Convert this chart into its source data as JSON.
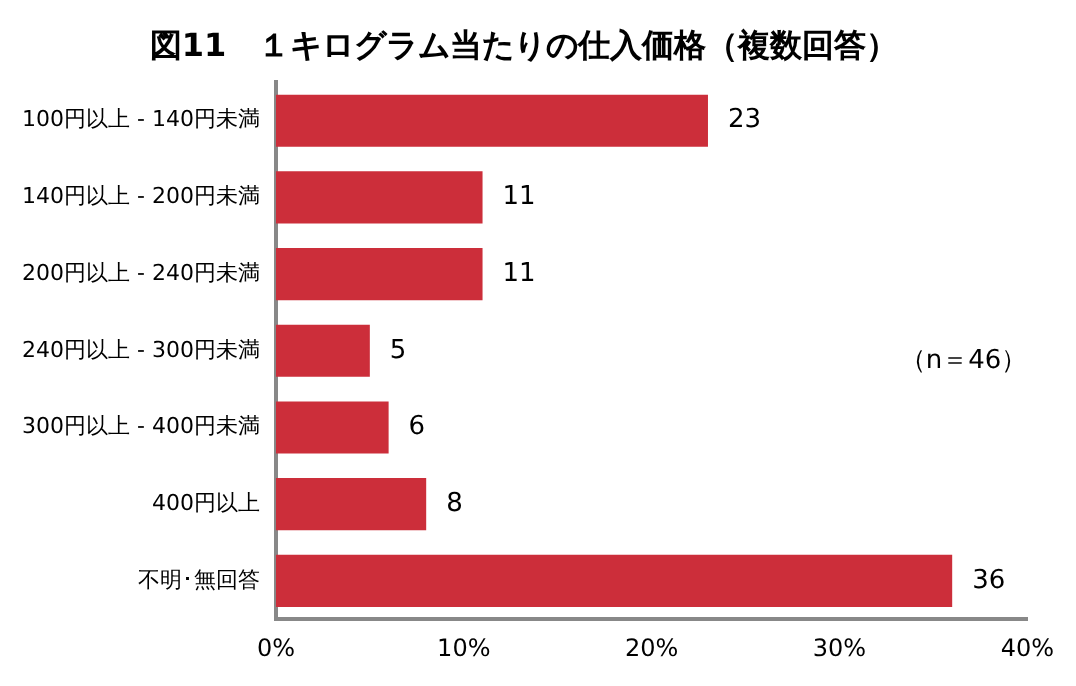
{
  "chart_data": {
    "type": "bar",
    "orientation": "horizontal",
    "title": "図11　１キログラム当たりの仕入価格（複数回答）",
    "categories": [
      "100円以上 - 140円未満",
      "140円以上 - 200円未満",
      "200円以上 - 240円未満",
      "240円以上 - 300円未満",
      "300円以上 - 400円未満",
      "400円以上",
      "不明･無回答"
    ],
    "values": [
      23,
      11,
      11,
      5,
      6,
      8,
      36
    ],
    "color": "#cc2e3a",
    "data_labels": true,
    "xlim": [
      0,
      40
    ],
    "xticks": [
      {
        "value": 0,
        "label": "0%"
      },
      {
        "value": 10,
        "label": "10%"
      },
      {
        "value": 20,
        "label": "20%"
      },
      {
        "value": 30,
        "label": "30%"
      },
      {
        "value": 40,
        "label": "40%"
      }
    ],
    "grid": false,
    "legend": false,
    "annotations": [
      "（n＝46）"
    ]
  }
}
